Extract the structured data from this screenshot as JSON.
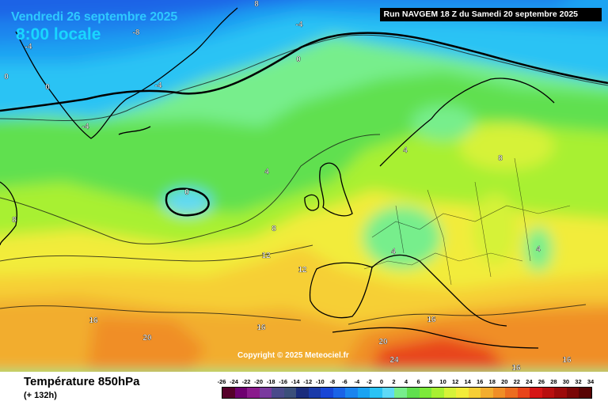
{
  "header": {
    "date": "Vendredi 26 septembre 2025",
    "local_time": "8:00 locale",
    "run": "Run NAVGEM 18 Z du Samedi 20 septembre 2025"
  },
  "copyright": "Copyright © 2025 Meteociel.fr",
  "footer": {
    "title": "Température 850hPa",
    "lead": "(+ 132h)"
  },
  "legend": {
    "ticks": [
      "-26",
      "-24",
      "-22",
      "-20",
      "-18",
      "-16",
      "-14",
      "-12",
      "-10",
      "-8",
      "-6",
      "-4",
      "-2",
      "0",
      "2",
      "4",
      "6",
      "8",
      "10",
      "12",
      "14",
      "16",
      "18",
      "20",
      "22",
      "24",
      "26",
      "28",
      "30",
      "32",
      "34"
    ],
    "colors": [
      "#55002a",
      "#6e0070",
      "#8a1b8c",
      "#7a3a9e",
      "#4a4a8a",
      "#3b4f7a",
      "#1a2c7c",
      "#1a3aa8",
      "#1846d6",
      "#1a63e6",
      "#1a84ee",
      "#1aa3f2",
      "#2ac3f4",
      "#5ed9f6",
      "#77ee8c",
      "#60e04f",
      "#7cea3a",
      "#a8f032",
      "#d6f238",
      "#f2ec3a",
      "#f6cf36",
      "#f2ad2e",
      "#f08e26",
      "#ec6d20",
      "#e8441a",
      "#d61616",
      "#b80f0f",
      "#9c0a0a",
      "#7a0606",
      "#580303"
    ]
  },
  "isolines": [
    {
      "value": "8",
      "label": "label-8-north"
    },
    {
      "value": "-8",
      "label": "label-minus8"
    },
    {
      "value": "-4",
      "label": "label-minus4-greenland"
    },
    {
      "value": "-4",
      "label": "label-minus4-north"
    },
    {
      "value": "0",
      "label": "label-0-west"
    },
    {
      "value": "0",
      "label": "label-0-greenland"
    },
    {
      "value": "-4",
      "label": "label-minus4-south"
    },
    {
      "value": "-4",
      "label": "label-minus4-lower"
    },
    {
      "value": "0",
      "label": "label-0-norwegian-sea"
    },
    {
      "value": "4",
      "label": "label-4-atlantic"
    },
    {
      "value": "0",
      "label": "label-0-cold-pool"
    },
    {
      "value": "8",
      "label": "label-8-canada"
    },
    {
      "value": "8",
      "label": "label-8-atlantic"
    },
    {
      "value": "12",
      "label": "label-12-atlantic"
    },
    {
      "value": "12",
      "label": "label-12-biscay"
    },
    {
      "value": "4",
      "label": "label-4-norway"
    },
    {
      "value": "8",
      "label": "label-8-scandinavia"
    },
    {
      "value": "4",
      "label": "label-4-germany"
    },
    {
      "value": "4",
      "label": "label-4-ukraine"
    },
    {
      "value": "16",
      "label": "label-16-west"
    },
    {
      "value": "16",
      "label": "label-16-iberia"
    },
    {
      "value": "16",
      "label": "label-16-italy"
    },
    {
      "value": "20",
      "label": "label-20-azores"
    },
    {
      "value": "20",
      "label": "label-20-libya"
    },
    {
      "value": "24",
      "label": "label-24-egypt"
    },
    {
      "value": "16",
      "label": "label-16-africa"
    },
    {
      "value": "16",
      "label": "label-16-east"
    }
  ]
}
